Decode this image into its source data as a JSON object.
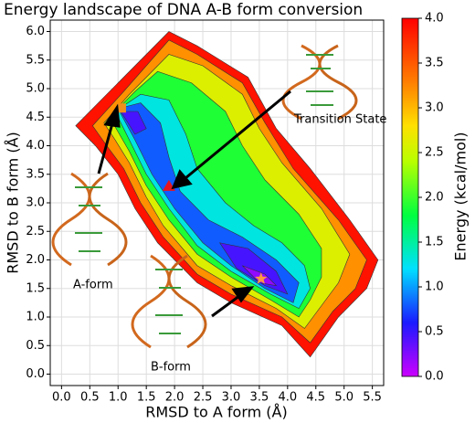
{
  "chart_data": {
    "type": "contourf",
    "title": "Energy landscape of DNA A-B form conversion",
    "xlabel": "RMSD to A form (Å)",
    "ylabel": "RMSD to B form (Å)",
    "colorbar_label": "Energy (kcal/mol)",
    "xlim": [
      -0.2,
      5.7
    ],
    "ylim": [
      -0.2,
      6.2
    ],
    "clim": [
      0,
      4
    ],
    "xticks": [
      {
        "value": 0,
        "label": "0.0"
      },
      {
        "value": 0.5,
        "label": "0.5"
      },
      {
        "value": 1,
        "label": "1.0"
      },
      {
        "value": 1.5,
        "label": "1.5"
      },
      {
        "value": 2,
        "label": "2.0"
      },
      {
        "value": 2.5,
        "label": "2.5"
      },
      {
        "value": 3,
        "label": "3.0"
      },
      {
        "value": 3.5,
        "label": "3.5"
      },
      {
        "value": 4,
        "label": "4.0"
      },
      {
        "value": 4.5,
        "label": "4.5"
      },
      {
        "value": 5,
        "label": "5.0"
      },
      {
        "value": 5.5,
        "label": "5.5"
      }
    ],
    "yticks": [
      {
        "value": 0,
        "label": "0.0"
      },
      {
        "value": 0.5,
        "label": "0.5"
      },
      {
        "value": 1,
        "label": "1.0"
      },
      {
        "value": 1.5,
        "label": "1.5"
      },
      {
        "value": 2,
        "label": "2.0"
      },
      {
        "value": 2.5,
        "label": "2.5"
      },
      {
        "value": 3,
        "label": "3.0"
      },
      {
        "value": 3.5,
        "label": "3.5"
      },
      {
        "value": 4,
        "label": "4.0"
      },
      {
        "value": 4.5,
        "label": "4.5"
      },
      {
        "value": 5,
        "label": "5.0"
      },
      {
        "value": 5.5,
        "label": "5.5"
      },
      {
        "value": 6,
        "label": "6.0"
      }
    ],
    "cticks": [
      {
        "value": 0,
        "label": "0.0"
      },
      {
        "value": 0.5,
        "label": "0.5"
      },
      {
        "value": 1,
        "label": "1.0"
      },
      {
        "value": 1.5,
        "label": "1.5"
      },
      {
        "value": 2,
        "label": "2.0"
      },
      {
        "value": 2.5,
        "label": "2.5"
      },
      {
        "value": 3,
        "label": "3.0"
      },
      {
        "value": 3.5,
        "label": "3.5"
      },
      {
        "value": 4,
        "label": "4.0"
      }
    ],
    "grid": true,
    "colormap": [
      {
        "at": 0,
        "color": "#cc00ff"
      },
      {
        "at": 0.15,
        "color": "#1a1aff"
      },
      {
        "at": 0.3,
        "color": "#00e0ff"
      },
      {
        "at": 0.45,
        "color": "#00ff40"
      },
      {
        "at": 0.6,
        "color": "#b8ff00"
      },
      {
        "at": 0.7,
        "color": "#ffe000"
      },
      {
        "at": 0.82,
        "color": "#ff8000"
      },
      {
        "at": 1,
        "color": "#ff0000"
      }
    ],
    "regions": [
      {
        "level": 3.9,
        "x": [
          0.25,
          1.0,
          1.9,
          2.4,
          3.3,
          3.8,
          4.4,
          5.1,
          5.6,
          5.4,
          4.9,
          4.4,
          3.9,
          3.0,
          2.4,
          1.7,
          1.3,
          1.0,
          0.6
        ],
        "y": [
          4.35,
          5.1,
          6.0,
          5.75,
          5.2,
          4.3,
          3.6,
          2.7,
          2.0,
          1.5,
          1.0,
          0.3,
          0.85,
          1.25,
          1.6,
          2.3,
          2.9,
          3.5,
          4.0
        ]
      },
      {
        "level": 3.2,
        "x": [
          0.55,
          1.1,
          1.9,
          2.4,
          3.2,
          3.6,
          4.1,
          4.9,
          5.4,
          5.2,
          4.8,
          4.4,
          3.9,
          3.0,
          2.4,
          1.8,
          1.4,
          1.1,
          0.8
        ],
        "y": [
          4.35,
          4.95,
          5.85,
          5.6,
          5.1,
          4.4,
          3.6,
          2.7,
          2.0,
          1.5,
          1.1,
          0.55,
          1.0,
          1.4,
          1.75,
          2.4,
          3.0,
          3.6,
          4.0
        ]
      },
      {
        "level": 2.6,
        "x": [
          0.75,
          1.2,
          1.9,
          2.5,
          3.2,
          3.5,
          3.9,
          4.6,
          5.1,
          4.9,
          4.6,
          4.3,
          3.8,
          3.0,
          2.4,
          1.8,
          1.5,
          1.2,
          0.95
        ],
        "y": [
          4.4,
          4.9,
          5.6,
          5.4,
          4.9,
          4.3,
          3.7,
          2.9,
          2.1,
          1.6,
          1.2,
          0.8,
          1.15,
          1.55,
          1.9,
          2.6,
          3.1,
          3.7,
          4.1
        ]
      },
      {
        "level": 1.9,
        "x": [
          0.85,
          1.3,
          1.7,
          2.3,
          2.9,
          3.2,
          3.6,
          4.2,
          4.6,
          4.6,
          4.4,
          4.2,
          3.7,
          3.0,
          2.4,
          1.9,
          1.5,
          1.2
        ],
        "y": [
          4.5,
          4.95,
          5.3,
          5.1,
          4.6,
          4.0,
          3.4,
          2.8,
          2.2,
          1.7,
          1.3,
          1.0,
          1.3,
          1.7,
          2.1,
          2.7,
          3.3,
          3.9
        ]
      },
      {
        "level": 1.3,
        "x": [
          0.95,
          1.4,
          1.9,
          2.2,
          2.4,
          2.9,
          3.4,
          3.9,
          4.3,
          4.4,
          4.2,
          3.7,
          3.0,
          2.4,
          1.9,
          1.5,
          1.2
        ],
        "y": [
          4.6,
          4.9,
          4.8,
          4.2,
          3.6,
          3.0,
          2.6,
          2.3,
          1.9,
          1.5,
          1.15,
          1.4,
          1.8,
          2.25,
          2.9,
          3.5,
          4.1
        ]
      },
      {
        "level": 0.8,
        "x": [
          1.0,
          1.4,
          1.75,
          1.9,
          2.1,
          2.6,
          3.2,
          3.8,
          4.2,
          4.1,
          3.6,
          3.0,
          2.5,
          2.0,
          1.6,
          1.3
        ],
        "y": [
          4.65,
          4.75,
          4.4,
          3.8,
          3.2,
          2.7,
          2.4,
          2.0,
          1.6,
          1.25,
          1.5,
          1.9,
          2.3,
          2.9,
          3.5,
          4.1
        ]
      },
      {
        "level": 0.45,
        "x": [
          2.8,
          3.3,
          3.8,
          4.0,
          3.6,
          3.1
        ],
        "y": [
          2.3,
          2.2,
          1.8,
          1.4,
          1.55,
          1.85
        ]
      },
      {
        "level": 0.45,
        "x": [
          1.05,
          1.35,
          1.5,
          1.3
        ],
        "y": [
          4.6,
          4.6,
          4.3,
          4.2
        ]
      },
      {
        "level": 0.2,
        "x": [
          3.2,
          3.6,
          3.8,
          3.5
        ],
        "y": [
          1.9,
          1.75,
          1.55,
          1.6
        ]
      }
    ],
    "markers": [
      {
        "shape": "square",
        "color": "#f0901a",
        "x": 1.06,
        "y": 4.66
      },
      {
        "shape": "triangle",
        "color": "#e8141c",
        "x": 1.9,
        "y": 3.29
      },
      {
        "shape": "star",
        "color": "#ff9a40",
        "x": 3.53,
        "y": 1.67
      }
    ],
    "annotations": [
      "Transition State",
      "A-form",
      "B-form"
    ]
  }
}
